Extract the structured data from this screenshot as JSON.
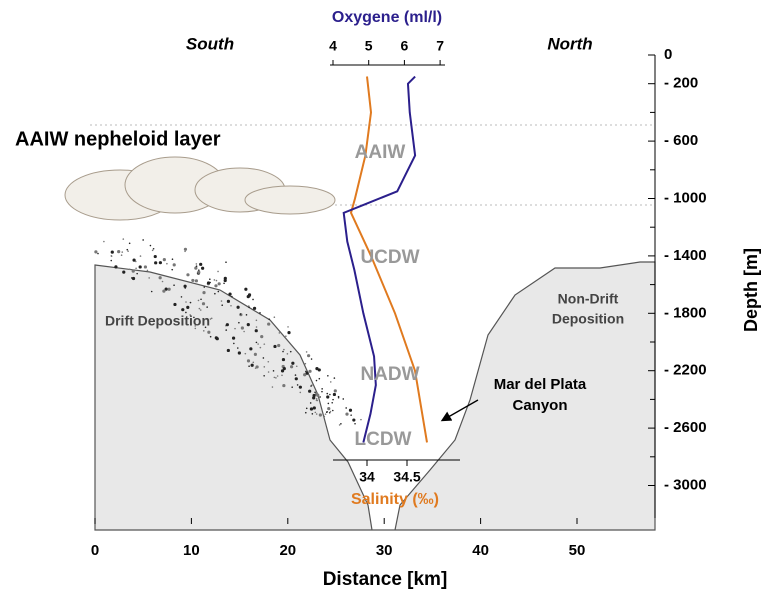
{
  "labels": {
    "south": "South",
    "north": "North",
    "nepheloid": "AAIW nepheloid layer",
    "drift": "Drift Deposition",
    "non_drift": [
      "Non-Drift",
      "Deposition"
    ],
    "canyon": [
      "Mar del Plata",
      "Canyon"
    ]
  },
  "water_masses": [
    "AAIW",
    "UCDW",
    "NADW",
    "LCDW"
  ],
  "distance_axis": {
    "title": "Distance [km]",
    "ticks": [
      0,
      10,
      20,
      30,
      40,
      50
    ]
  },
  "depth_axis": {
    "title": "Depth [m]",
    "ticks": [
      0,
      {
        "value": 200,
        "label": "- 200"
      },
      {
        "value": 600,
        "label": "- 600"
      },
      {
        "value": 1000,
        "label": "- 1000"
      },
      {
        "value": 1400,
        "label": "- 1400"
      },
      {
        "value": 1800,
        "label": "- 1800"
      },
      {
        "value": 2200,
        "label": "- 2200"
      },
      {
        "value": 2600,
        "label": "- 2600"
      },
      {
        "value": 3000,
        "label": "- 3000"
      }
    ]
  },
  "oxygen_axis": {
    "title": "Oxygene (ml/l)",
    "ticks": [
      4,
      5,
      6,
      7
    ]
  },
  "salinity_axis": {
    "title": "Salinity (‰)",
    "ticks": [
      34,
      34.5
    ]
  },
  "oxygen_profile": {
    "depth": [
      150,
      200,
      400,
      700,
      850,
      950,
      1050,
      1100,
      1300,
      1500,
      1800,
      2100,
      2300,
      2500,
      2700
    ],
    "values": [
      6.3,
      6.1,
      6.15,
      6.3,
      6.0,
      5.8,
      4.8,
      4.3,
      4.4,
      4.6,
      4.85,
      5.15,
      5.2,
      5.05,
      4.85
    ]
  },
  "salinity_profile": {
    "depth": [
      150,
      400,
      700,
      1000,
      1100,
      1400,
      1800,
      2200,
      2600,
      2700
    ],
    "values": [
      34.0,
      34.05,
      33.98,
      33.85,
      33.8,
      34.05,
      34.35,
      34.6,
      34.72,
      34.75
    ]
  }
}
